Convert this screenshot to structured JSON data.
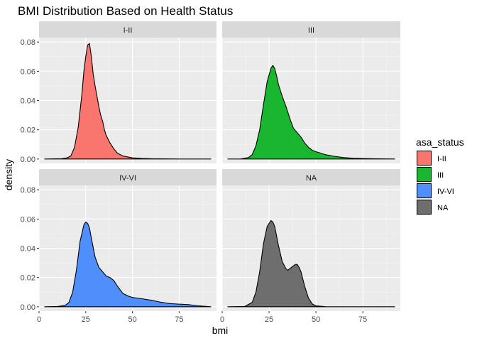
{
  "chart_data": {
    "type": "area",
    "subtype": "density",
    "title": "BMI Distribution Based on Health Status",
    "xlabel": "bmi",
    "ylabel": "density",
    "xlim": [
      0,
      95
    ],
    "ylim": [
      -0.003,
      0.083
    ],
    "x_ticks": [
      0,
      25,
      50,
      75
    ],
    "y_ticks": [
      0.0,
      0.02,
      0.04,
      0.06,
      0.08
    ],
    "y_tick_labels": [
      "0.00",
      "0.02",
      "0.04",
      "0.06",
      "0.08"
    ],
    "grid": true,
    "facet_layout": "2x2",
    "facets": [
      {
        "label": "I-II",
        "color": "#F8766D",
        "x": [
          3,
          12,
          15,
          17,
          19,
          21,
          23,
          24,
          25,
          26,
          27,
          28,
          29,
          30,
          31,
          32,
          33,
          34,
          35,
          36,
          38,
          40,
          42,
          45,
          50,
          55,
          60,
          70,
          80,
          92
        ],
        "y": [
          0,
          0.0002,
          0.0008,
          0.002,
          0.008,
          0.022,
          0.045,
          0.06,
          0.07,
          0.078,
          0.079,
          0.07,
          0.058,
          0.05,
          0.043,
          0.036,
          0.03,
          0.026,
          0.02,
          0.016,
          0.011,
          0.007,
          0.004,
          0.002,
          0.0008,
          0.0004,
          0.0002,
          0.0001,
          0,
          0
        ]
      },
      {
        "label": "III",
        "color": "#19B62F",
        "x": [
          3,
          10,
          14,
          16,
          18,
          20,
          22,
          24,
          26,
          27,
          28,
          29,
          30,
          32,
          34,
          36,
          38,
          40,
          42,
          44,
          46,
          48,
          50,
          55,
          60,
          65,
          70,
          80,
          92
        ],
        "y": [
          0,
          0.0001,
          0.001,
          0.003,
          0.009,
          0.02,
          0.037,
          0.053,
          0.062,
          0.064,
          0.062,
          0.057,
          0.051,
          0.043,
          0.036,
          0.028,
          0.021,
          0.018,
          0.015,
          0.011,
          0.008,
          0.006,
          0.005,
          0.003,
          0.0018,
          0.001,
          0.0005,
          0.0002,
          0
        ]
      },
      {
        "label": "IV-VI",
        "color": "#4F8FFC",
        "x": [
          3,
          10,
          14,
          16,
          18,
          20,
          22,
          24,
          25,
          26,
          27,
          28,
          30,
          32,
          34,
          36,
          38,
          40,
          42,
          45,
          48,
          50,
          55,
          60,
          65,
          70,
          75,
          80,
          85,
          92
        ],
        "y": [
          0,
          0.0002,
          0.001,
          0.003,
          0.01,
          0.025,
          0.045,
          0.056,
          0.058,
          0.057,
          0.054,
          0.047,
          0.034,
          0.027,
          0.024,
          0.021,
          0.02,
          0.018,
          0.014,
          0.009,
          0.0072,
          0.0064,
          0.0055,
          0.0045,
          0.0032,
          0.0022,
          0.0018,
          0.0015,
          0.0007,
          0
        ]
      },
      {
        "label": "NA",
        "color": "#6E6E6E",
        "x": [
          3,
          12,
          16,
          18,
          20,
          22,
          24,
          26,
          27,
          28,
          30,
          32,
          34,
          35,
          36,
          38,
          39,
          40,
          41,
          42,
          44,
          46,
          48,
          50,
          55,
          60,
          92
        ],
        "y": [
          0,
          0.0002,
          0.003,
          0.01,
          0.024,
          0.043,
          0.055,
          0.059,
          0.058,
          0.055,
          0.042,
          0.031,
          0.026,
          0.025,
          0.026,
          0.028,
          0.029,
          0.029,
          0.027,
          0.024,
          0.014,
          0.006,
          0.002,
          0.0006,
          0.0001,
          0,
          0
        ]
      }
    ],
    "legend": {
      "title": "asa_status",
      "position": "right",
      "items": [
        {
          "label": "I-II",
          "color": "#F8766D"
        },
        {
          "label": "III",
          "color": "#19B62F"
        },
        {
          "label": "IV-VI",
          "color": "#4F8FFC"
        },
        {
          "label": "NA",
          "color": "#6E6E6E"
        }
      ]
    },
    "colors": {
      "panel_background": "#EBEBEB",
      "strip_background": "#D9D9D9",
      "grid_major": "#FFFFFF",
      "outline": "#000000"
    }
  }
}
